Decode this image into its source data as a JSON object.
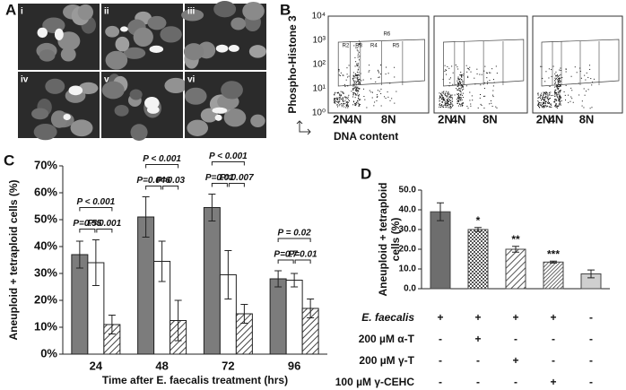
{
  "panel_a": {
    "label": "A",
    "images": [
      "i",
      "ii",
      "iii",
      "iv",
      "v",
      "vi"
    ]
  },
  "panel_b": {
    "label": "B",
    "y_label": "Phospho-Histone 3",
    "x_label": "DNA content",
    "yticks": [
      "10⁴",
      "10³",
      "10²",
      "10¹",
      "10⁰"
    ],
    "xticks": [
      "2N",
      "4N",
      "8N"
    ],
    "gates": [
      "R6",
      "R2",
      "R3",
      "R4",
      "R5"
    ]
  },
  "chart_data": [
    {
      "type": "bar",
      "label": "C",
      "xlabel": "Time after E. faecalis treatment (hrs)",
      "ylabel": "Aneuploid + tetraploid cells (%)",
      "categories": [
        "24",
        "48",
        "72",
        "96"
      ],
      "series": [
        {
          "color": "#7c7c7c",
          "values": [
            37,
            51,
            54.5,
            28
          ],
          "errors": [
            5,
            7.5,
            5,
            3
          ]
        },
        {
          "color": "#ffffff",
          "values": [
            34,
            34.5,
            29.5,
            27.5
          ],
          "errors": [
            8.5,
            7.5,
            9,
            2.5
          ]
        },
        {
          "color": "#444444",
          "pattern": "hatch",
          "values": [
            11,
            12.5,
            15,
            17
          ],
          "errors": [
            3.5,
            7.5,
            3.5,
            3.5
          ]
        }
      ],
      "p_values": [
        [
          "P < 0.001",
          "P=0.55",
          "P=0.001"
        ],
        [
          "P < 0.001",
          "P=0.046",
          "P=0.03"
        ],
        [
          "P < 0.001",
          "P=0.01",
          "P=0.007"
        ],
        [
          "P = 0.02",
          "P=0.7",
          "P=0.01"
        ]
      ],
      "ylim": [
        0,
        70
      ],
      "yticks": [
        {
          "value": 0,
          "label": "0%"
        },
        {
          "value": 10,
          "label": "10%"
        },
        {
          "value": 20,
          "label": "20%"
        },
        {
          "value": 30,
          "label": "30%"
        },
        {
          "value": 40,
          "label": "40%"
        },
        {
          "value": 50,
          "label": "50%"
        },
        {
          "value": 60,
          "label": "60%"
        },
        {
          "value": 70,
          "label": "70%"
        }
      ]
    },
    {
      "type": "bar",
      "label": "D",
      "ylabel": [
        "Aneuploid + tetraploid",
        "cells (%)"
      ],
      "values": [
        39,
        30,
        20,
        13.5,
        7.5
      ],
      "errors": [
        4.5,
        1,
        1.5,
        0.5,
        2
      ],
      "colors": [
        "#6e6e6e",
        "#555555",
        "#555555",
        "#444444",
        "#cfcfcf"
      ],
      "patterns": [
        null,
        "checker",
        "diag",
        "diag-dense",
        null
      ],
      "annotations": [
        null,
        "*",
        "**",
        "***",
        null
      ],
      "ylim": [
        0,
        50
      ],
      "yticks": [
        {
          "value": 0,
          "label": "0.0"
        },
        {
          "value": 10,
          "label": "10.0"
        },
        {
          "value": 20,
          "label": "20.0"
        },
        {
          "value": 30,
          "label": "30.0"
        },
        {
          "value": 40,
          "label": "40.0"
        },
        {
          "value": 50,
          "label": "50.0"
        }
      ],
      "treatments": [
        {
          "label": "E. faecalis",
          "signs": [
            "+",
            "+",
            "+",
            "+",
            "-"
          ]
        },
        {
          "label": "200 µM α-T",
          "signs": [
            "-",
            "+",
            "-",
            "-",
            "-"
          ]
        },
        {
          "label": "200 µM γ-T",
          "signs": [
            "-",
            "-",
            "+",
            "-",
            "-"
          ]
        },
        {
          "label": "100 µM γ-CEHC",
          "signs": [
            "-",
            "-",
            "-",
            "+",
            "-"
          ]
        }
      ]
    }
  ]
}
